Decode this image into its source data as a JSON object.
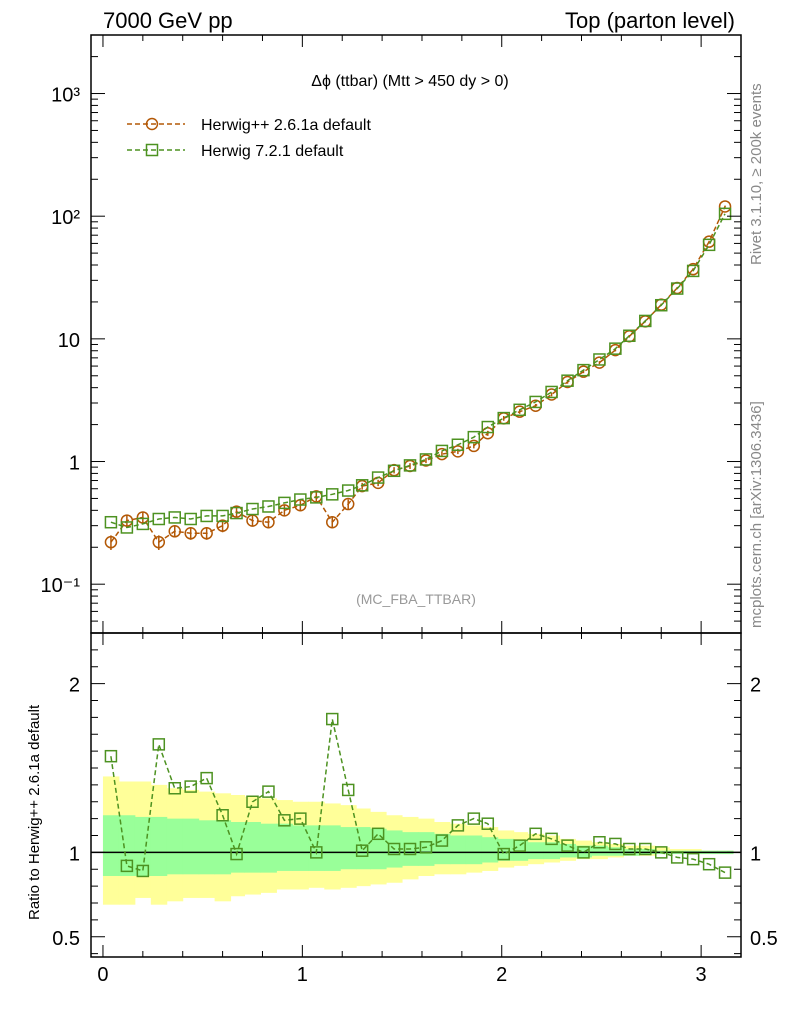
{
  "header": {
    "left": "7000 GeV pp",
    "right": "Top (parton level)"
  },
  "side_labels": {
    "rivet": "Rivet 3.1.10, ≥ 200k events",
    "mcplots": "mcplots.cern.ch [arXiv:1306.3436]"
  },
  "chart_data": [
    {
      "type": "line",
      "panel": "main",
      "title": "Δϕ (ttbar) (Mtt > 450 dy > 0)",
      "watermark": "(MC_FBA_TTBAR)",
      "xlim": [
        -0.06,
        3.2
      ],
      "ylim": [
        0.04,
        3000
      ],
      "yscale": "log",
      "ytick_labels": [
        "10⁻¹",
        "1",
        "10",
        "10²",
        "10³"
      ],
      "xtick_labels": [
        "0",
        "1",
        "2",
        "3"
      ],
      "legend_position": "top-left",
      "series": [
        {
          "name": "Herwig++ 2.6.1a default",
          "color": "#b35806",
          "marker": "circle",
          "x": [
            0.04,
            0.12,
            0.2,
            0.28,
            0.36,
            0.44,
            0.52,
            0.6,
            0.67,
            0.75,
            0.83,
            0.91,
            0.99,
            1.07,
            1.15,
            1.23,
            1.3,
            1.38,
            1.46,
            1.54,
            1.62,
            1.7,
            1.78,
            1.86,
            1.93,
            2.01,
            2.09,
            2.17,
            2.25,
            2.33,
            2.41,
            2.49,
            2.57,
            2.64,
            2.72,
            2.8,
            2.88,
            2.96,
            3.04,
            3.12
          ],
          "y": [
            0.22,
            0.33,
            0.35,
            0.22,
            0.27,
            0.26,
            0.26,
            0.3,
            0.39,
            0.33,
            0.32,
            0.4,
            0.44,
            0.52,
            0.32,
            0.45,
            0.63,
            0.67,
            0.85,
            0.92,
            1.02,
            1.15,
            1.21,
            1.34,
            1.7,
            2.25,
            2.55,
            2.85,
            3.52,
            4.45,
            5.4,
            6.4,
            8.1,
            10.5,
            13.9,
            19.0,
            26.0,
            37.0,
            62.0,
            120.0
          ],
          "yerr": [
            0.03,
            0.04,
            0.04,
            0.03,
            0.03,
            0.03,
            0.03,
            0.035,
            0.04,
            0.035,
            0.035,
            0.04,
            0.04,
            0.045,
            0.03,
            0.04,
            0.04,
            0.04,
            0.05,
            0.05,
            0.05,
            0.06,
            0.06,
            0.06,
            0.08,
            0.1,
            0.1,
            0.1,
            0.12,
            0.14,
            0.15,
            0.18,
            0.2,
            0.25,
            0.3,
            0.4,
            0.5,
            0.7,
            1.0,
            2.0
          ]
        },
        {
          "name": "Herwig 7.2.1 default",
          "color": "#4d9221",
          "marker": "square",
          "x": [
            0.04,
            0.12,
            0.2,
            0.28,
            0.36,
            0.44,
            0.52,
            0.6,
            0.67,
            0.75,
            0.83,
            0.91,
            0.99,
            1.07,
            1.15,
            1.23,
            1.3,
            1.38,
            1.46,
            1.54,
            1.62,
            1.7,
            1.78,
            1.86,
            1.93,
            2.01,
            2.09,
            2.17,
            2.25,
            2.33,
            2.41,
            2.49,
            2.57,
            2.64,
            2.72,
            2.8,
            2.88,
            2.96,
            3.04,
            3.12
          ],
          "y": [
            0.32,
            0.29,
            0.31,
            0.34,
            0.35,
            0.34,
            0.36,
            0.36,
            0.38,
            0.41,
            0.43,
            0.46,
            0.49,
            0.51,
            0.54,
            0.58,
            0.64,
            0.74,
            0.84,
            0.93,
            1.04,
            1.22,
            1.37,
            1.58,
            1.91,
            2.26,
            2.64,
            3.06,
            3.69,
            4.56,
            5.56,
            6.79,
            8.32,
            10.6,
            14.0,
            18.8,
            25.7,
            35.8,
            58.4,
            104.5
          ]
        }
      ]
    },
    {
      "type": "line",
      "panel": "ratio",
      "ylabel": "Ratio to Herwig++ 2.6.1a default",
      "xlim": [
        -0.06,
        3.2
      ],
      "ylim": [
        0.38,
        2.3
      ],
      "ytick_labels": [
        "0.5",
        "1",
        "2"
      ],
      "xtick_labels": [
        "0",
        "1",
        "2",
        "3"
      ],
      "reference_line": 1,
      "bands": {
        "inner_color": "#99ff99",
        "outer_color": "#ffff99",
        "bin_edges": [
          0.0,
          0.08,
          0.16,
          0.24,
          0.32,
          0.4,
          0.48,
          0.56,
          0.64,
          0.71,
          0.79,
          0.87,
          0.95,
          1.03,
          1.11,
          1.19,
          1.27,
          1.34,
          1.42,
          1.5,
          1.58,
          1.66,
          1.74,
          1.82,
          1.9,
          1.98,
          2.06,
          2.13,
          2.21,
          2.29,
          2.37,
          2.45,
          2.53,
          2.61,
          2.69,
          2.77,
          2.84,
          2.92,
          3.0,
          3.08,
          3.16
        ],
        "inner_lo": [
          0.86,
          0.86,
          0.86,
          0.86,
          0.87,
          0.87,
          0.87,
          0.87,
          0.88,
          0.88,
          0.88,
          0.89,
          0.89,
          0.89,
          0.89,
          0.9,
          0.9,
          0.9,
          0.91,
          0.92,
          0.92,
          0.93,
          0.93,
          0.93,
          0.94,
          0.95,
          0.95,
          0.96,
          0.96,
          0.97,
          0.97,
          0.98,
          0.98,
          0.98,
          0.99,
          0.99,
          0.99,
          0.99,
          0.99,
          0.99
        ],
        "inner_hi": [
          1.22,
          1.22,
          1.21,
          1.21,
          1.2,
          1.2,
          1.19,
          1.19,
          1.18,
          1.18,
          1.17,
          1.17,
          1.16,
          1.16,
          1.16,
          1.15,
          1.15,
          1.14,
          1.13,
          1.12,
          1.12,
          1.11,
          1.1,
          1.1,
          1.09,
          1.08,
          1.07,
          1.06,
          1.06,
          1.05,
          1.04,
          1.04,
          1.03,
          1.02,
          1.02,
          1.01,
          1.01,
          1.01,
          1.01,
          1.01
        ],
        "outer_lo": [
          0.69,
          0.69,
          0.73,
          0.69,
          0.71,
          0.73,
          0.73,
          0.71,
          0.74,
          0.75,
          0.76,
          0.78,
          0.78,
          0.79,
          0.78,
          0.79,
          0.8,
          0.81,
          0.82,
          0.84,
          0.86,
          0.87,
          0.87,
          0.88,
          0.89,
          0.91,
          0.92,
          0.93,
          0.94,
          0.95,
          0.96,
          0.96,
          0.97,
          0.98,
          0.98,
          0.99,
          0.99,
          0.99,
          0.99,
          0.99
        ],
        "outer_hi": [
          1.45,
          1.42,
          1.42,
          1.4,
          1.38,
          1.37,
          1.36,
          1.35,
          1.34,
          1.33,
          1.32,
          1.31,
          1.3,
          1.3,
          1.29,
          1.28,
          1.26,
          1.24,
          1.22,
          1.21,
          1.2,
          1.18,
          1.17,
          1.16,
          1.15,
          1.13,
          1.12,
          1.11,
          1.1,
          1.08,
          1.07,
          1.06,
          1.05,
          1.04,
          1.04,
          1.03,
          1.02,
          1.02,
          1.01,
          1.01
        ]
      },
      "series": [
        {
          "name": "Herwig++ 2.6.1a default",
          "color": "#b35806",
          "x": [
            0.04,
            3.12
          ],
          "y": [
            1.0,
            1.0
          ]
        },
        {
          "name": "Herwig 7.2.1 default",
          "color": "#4d9221",
          "marker": "square",
          "x": [
            0.04,
            0.12,
            0.2,
            0.28,
            0.36,
            0.44,
            0.52,
            0.6,
            0.67,
            0.75,
            0.83,
            0.91,
            0.99,
            1.07,
            1.15,
            1.23,
            1.3,
            1.38,
            1.46,
            1.54,
            1.62,
            1.7,
            1.78,
            1.86,
            1.93,
            2.01,
            2.09,
            2.17,
            2.25,
            2.33,
            2.41,
            2.49,
            2.57,
            2.64,
            2.72,
            2.8,
            2.88,
            2.96,
            3.04,
            3.12
          ],
          "y": [
            1.57,
            0.92,
            0.89,
            1.64,
            1.38,
            1.39,
            1.44,
            1.22,
            0.99,
            1.3,
            1.36,
            1.19,
            1.2,
            1.0,
            1.79,
            1.37,
            1.01,
            1.11,
            1.02,
            1.02,
            1.03,
            1.07,
            1.16,
            1.2,
            1.17,
            0.99,
            1.04,
            1.11,
            1.08,
            1.04,
            1.0,
            1.06,
            1.05,
            1.02,
            1.02,
            1.0,
            0.97,
            0.96,
            0.93,
            0.88
          ]
        }
      ]
    }
  ]
}
